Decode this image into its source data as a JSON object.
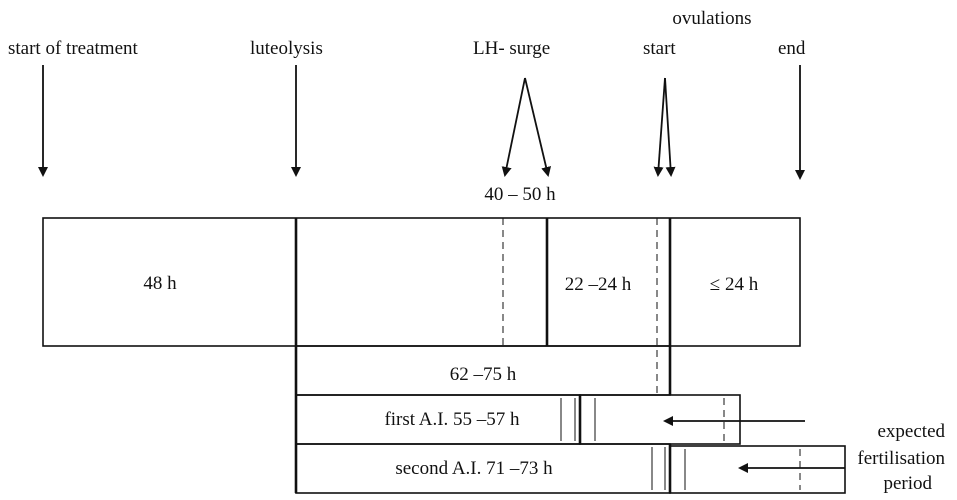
{
  "header": {
    "group": "ovulations"
  },
  "events": [
    "start of treatment",
    "luteolysis",
    "LH- surge",
    "start",
    "end"
  ],
  "surge_window": "40 – 50 h",
  "segments": [
    "48 h",
    "22 –24 h",
    "≤ 24 h",
    "62 –75 h"
  ],
  "inseminations": [
    "first A.I. 55 –57 h",
    "second A.I. 71 –73 h"
  ],
  "fertilisation": [
    "expected",
    "fertilisation",
    "period"
  ]
}
